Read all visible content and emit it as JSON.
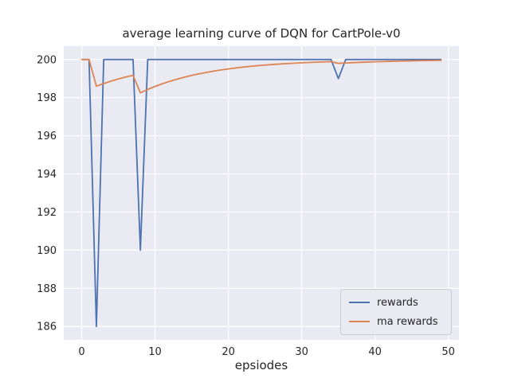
{
  "chart_data": {
    "type": "line",
    "title": "average learning curve of DQN for CartPole-v0",
    "xlabel": "epsiodes",
    "ylabel": "",
    "plot_bg": "#eaeaf2",
    "grid": true,
    "grid_color": "#ffffff",
    "legend_position": "lower right",
    "xlim": [
      -2.45,
      51.45
    ],
    "ylim": [
      185.3,
      200.7
    ],
    "xticks": [
      0,
      10,
      20,
      30,
      40,
      50
    ],
    "yticks": [
      186,
      188,
      190,
      192,
      194,
      196,
      198,
      200
    ],
    "x": [
      0,
      1,
      2,
      3,
      4,
      5,
      6,
      7,
      8,
      9,
      10,
      11,
      12,
      13,
      14,
      15,
      16,
      17,
      18,
      19,
      20,
      21,
      22,
      23,
      24,
      25,
      26,
      27,
      28,
      29,
      30,
      31,
      32,
      33,
      34,
      35,
      36,
      37,
      38,
      39,
      40,
      41,
      42,
      43,
      44,
      45,
      46,
      47,
      48,
      49
    ],
    "series": [
      {
        "name": "rewards",
        "color": "#4c72b0",
        "values": [
          200,
          200,
          186,
          200,
          200,
          200,
          200,
          200,
          190,
          200,
          200,
          200,
          200,
          200,
          200,
          200,
          200,
          200,
          200,
          200,
          200,
          200,
          200,
          200,
          200,
          200,
          200,
          200,
          200,
          200,
          200,
          200,
          200,
          200,
          200,
          199,
          200,
          200,
          200,
          200,
          200,
          200,
          200,
          200,
          200,
          200,
          200,
          200,
          200,
          200
        ]
      },
      {
        "name": "ma rewards",
        "color": "#dd8452",
        "values": [
          200,
          200,
          198.6,
          198.74,
          198.866,
          198.979,
          199.081,
          199.173,
          198.256,
          198.43,
          198.587,
          198.729,
          198.856,
          198.97,
          199.073,
          199.166,
          199.249,
          199.324,
          199.392,
          199.453,
          199.507,
          199.557,
          199.601,
          199.641,
          199.677,
          199.709,
          199.738,
          199.764,
          199.788,
          199.809,
          199.828,
          199.845,
          199.861,
          199.875,
          199.887,
          199.799,
          199.819,
          199.837,
          199.853,
          199.868,
          199.881,
          199.893,
          199.904,
          199.913,
          199.922,
          199.93,
          199.937,
          199.943,
          199.949,
          199.954
        ]
      }
    ]
  }
}
